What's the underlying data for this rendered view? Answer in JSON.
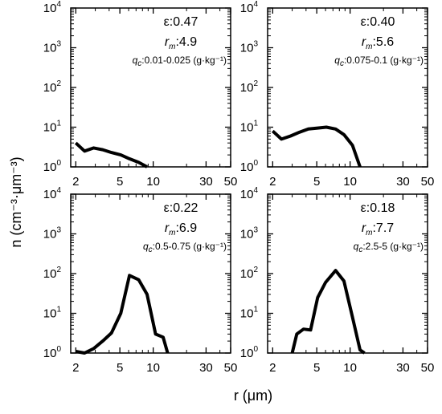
{
  "chart_data": {
    "type": "line",
    "ylabel": "n (cm⁻³·μm⁻³)",
    "xlabel": "r (μm)",
    "xscale": "log",
    "yscale": "log",
    "xlim": [
      1.8,
      50
    ],
    "ylim": [
      1,
      10000
    ],
    "x_ticks": [
      2,
      5,
      10,
      30,
      50
    ],
    "y_ticks": [
      1,
      10,
      100,
      1000,
      10000
    ],
    "panels": [
      {
        "epsilon_label": "ε:0.47",
        "rm_label": "r",
        "rm_sub": "m",
        "rm_value": ":4.9",
        "qc_label": "q",
        "qc_sub": "c",
        "qc_value": ":0.01-0.025 (g·kg⁻¹)",
        "x": [
          2.0,
          2.4,
          2.9,
          3.5,
          4.2,
          5.1,
          6.1,
          7.4,
          8.8
        ],
        "y": [
          4.0,
          2.5,
          3.0,
          2.7,
          2.3,
          2.0,
          1.6,
          1.3,
          1.0
        ]
      },
      {
        "epsilon_label": "ε:0.40",
        "rm_label": "r",
        "rm_sub": "m",
        "rm_value": ":5.6",
        "qc_label": "q",
        "qc_sub": "c",
        "qc_value": ":0.075-0.1 (g·kg⁻¹)",
        "x": [
          2.0,
          2.4,
          2.9,
          3.5,
          4.2,
          5.1,
          6.1,
          7.4,
          8.8,
          10.5,
          12.3
        ],
        "y": [
          8.0,
          5.0,
          6.0,
          7.5,
          9.0,
          9.5,
          10.0,
          9.0,
          6.5,
          3.5,
          1.0
        ]
      },
      {
        "epsilon_label": "ε:0.22",
        "rm_label": "r",
        "rm_sub": "m",
        "rm_value": ":6.9",
        "qc_label": "q",
        "qc_sub": "c",
        "qc_value": ":0.5-0.75 (g·kg⁻¹)",
        "x": [
          2.0,
          2.4,
          2.9,
          3.5,
          4.2,
          5.1,
          6.1,
          7.4,
          8.8,
          10.5,
          12.3,
          13.5
        ],
        "y": [
          1.1,
          1.0,
          1.3,
          2.0,
          3.2,
          10.0,
          90.0,
          70.0,
          30.0,
          3.0,
          2.5,
          1.0
        ]
      },
      {
        "epsilon_label": "ε:0.18",
        "rm_label": "r",
        "rm_sub": "m",
        "rm_value": ":7.7",
        "qc_label": "q",
        "qc_sub": "c",
        "qc_value": ":2.5-5 (g·kg⁻¹)",
        "x": [
          3.0,
          3.3,
          3.8,
          4.4,
          5.1,
          6.0,
          7.4,
          8.8,
          10.5,
          12.3,
          13.5
        ],
        "y": [
          1.0,
          3.0,
          4.0,
          3.8,
          25.0,
          60.0,
          120.0,
          65.0,
          8.0,
          1.2,
          1.0
        ]
      }
    ]
  }
}
